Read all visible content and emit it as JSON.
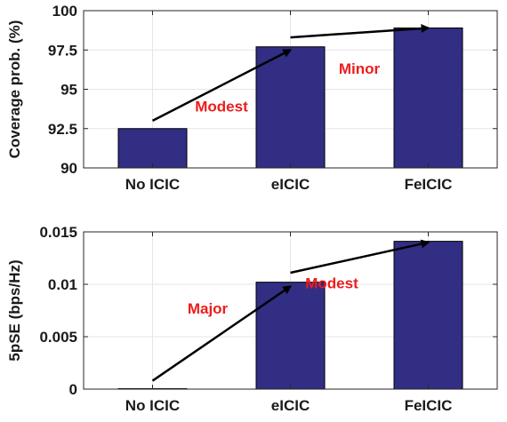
{
  "chart_data": [
    {
      "type": "bar",
      "categories": [
        "No ICIC",
        "eICIC",
        "FeICIC"
      ],
      "values": [
        92.5,
        97.7,
        98.9
      ],
      "ylabel": "Coverage prob. (%)",
      "ylim": [
        90,
        100
      ],
      "yticks": [
        90,
        92.5,
        95,
        97.5,
        100
      ],
      "ytick_labels": [
        "90",
        "92.5",
        "95",
        "97.5",
        "100"
      ],
      "grid": true,
      "bar_color": "#312e83",
      "annotations": [
        {
          "text": "Modest",
          "arrow_from": {
            "category": 0,
            "y": 93.0
          },
          "arrow_to": {
            "category": 1,
            "y": 97.5
          },
          "label_at": {
            "category": 0.5,
            "y": 93.6
          }
        },
        {
          "text": "Minor",
          "arrow_from": {
            "category": 1,
            "y": 98.3
          },
          "arrow_to": {
            "category": 2,
            "y": 98.9
          },
          "label_at": {
            "category": 1.5,
            "y": 96.0
          }
        }
      ]
    },
    {
      "type": "bar",
      "categories": [
        "No ICIC",
        "eICIC",
        "FeICIC"
      ],
      "values": [
        1e-05,
        0.0102,
        0.0141
      ],
      "ylabel": "5pSE (bps/Hz)",
      "ylim": [
        0,
        0.015
      ],
      "yticks": [
        0,
        0.005,
        0.01,
        0.015
      ],
      "ytick_labels": [
        "0",
        "0.005",
        "0.01",
        "0.015"
      ],
      "grid": true,
      "bar_color": "#312e83",
      "annotations": [
        {
          "text": "Major",
          "arrow_from": {
            "category": 0,
            "y": 0.0008
          },
          "arrow_to": {
            "category": 1,
            "y": 0.0098
          },
          "label_at": {
            "category": 0.4,
            "y": 0.0072
          }
        },
        {
          "text": "Modest",
          "arrow_from": {
            "category": 1,
            "y": 0.0111
          },
          "arrow_to": {
            "category": 2,
            "y": 0.014
          },
          "label_at": {
            "category": 1.3,
            "y": 0.0096
          }
        }
      ]
    }
  ],
  "colors": {
    "annotation": "#ee1c1c",
    "arrow": "#000000",
    "grid": "#e6e6e6",
    "axis": "#262626"
  }
}
